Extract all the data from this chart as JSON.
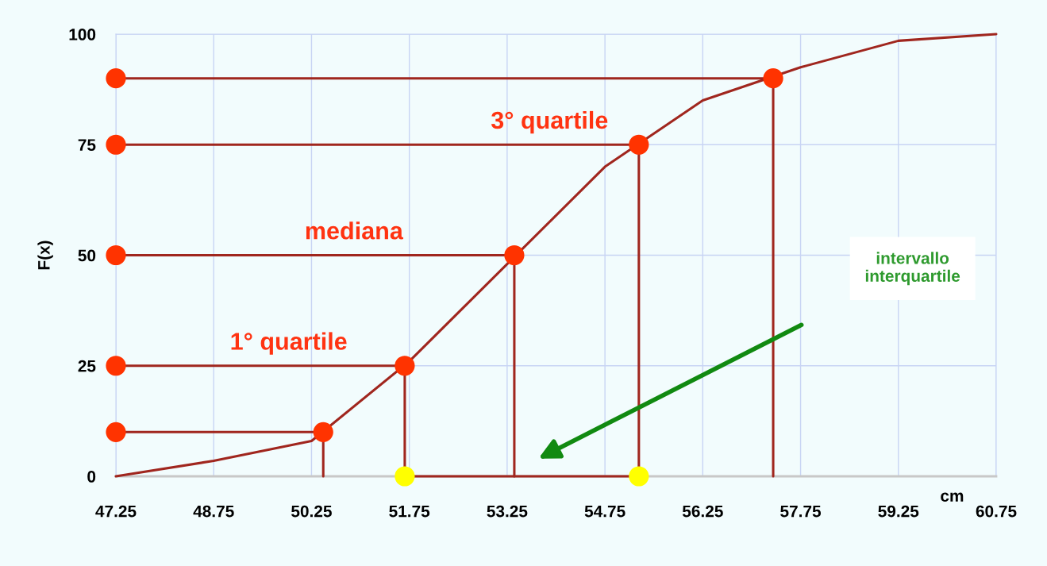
{
  "chart_data": {
    "type": "line",
    "xlabel": "cm",
    "ylabel": "F(x)",
    "xlim": [
      47.25,
      60.75
    ],
    "xticks": [
      47.25,
      48.75,
      50.25,
      51.75,
      53.25,
      54.75,
      56.25,
      57.75,
      59.25,
      60.75
    ],
    "ylim": [
      0,
      100
    ],
    "yticks": [
      0,
      25,
      50,
      75,
      100
    ],
    "grid": true,
    "series": [
      {
        "color": "#a0261e",
        "x": [
          47.25,
          48.75,
          50.25,
          51.75,
          53.25,
          54.75,
          56.25,
          57.75,
          59.25,
          60.75
        ],
        "values": [
          0,
          3.5,
          8,
          26,
          48,
          70,
          85,
          92.5,
          98.5,
          100
        ]
      },
      {
        "type": "line",
        "color": "#a0261e",
        "x": [
          47.25,
          50.43,
          50.43
        ],
        "values": [
          10,
          10,
          0
        ]
      },
      {
        "type": "line",
        "color": "#a0261e",
        "x": [
          47.25,
          51.68,
          51.68
        ],
        "values": [
          25,
          25,
          0
        ]
      },
      {
        "type": "line",
        "color": "#a0261e",
        "x": [
          47.25,
          53.36,
          53.36
        ],
        "values": [
          50,
          50,
          0
        ]
      },
      {
        "type": "line",
        "color": "#a0261e",
        "x": [
          47.25,
          55.27,
          55.27
        ],
        "values": [
          75,
          75,
          0
        ]
      },
      {
        "type": "line",
        "color": "#a0261e",
        "x": [
          47.25,
          57.33,
          57.33
        ],
        "values": [
          90,
          90,
          0
        ]
      },
      {
        "type": "line",
        "color": "#a0261e",
        "x": [
          51.68,
          55.27
        ],
        "values": [
          0,
          0
        ]
      },
      {
        "type": "scatter",
        "marker": "circle",
        "color": "#ff3300",
        "x": [
          47.25,
          47.25,
          47.25,
          47.25,
          47.25
        ],
        "values": [
          10,
          25,
          50,
          75,
          90
        ]
      },
      {
        "type": "scatter",
        "marker": "circle",
        "color": "#ff3300",
        "x": [
          50.43,
          51.68,
          53.36,
          55.27,
          57.33
        ],
        "values": [
          10,
          25,
          50,
          75,
          90
        ]
      },
      {
        "type": "scatter",
        "marker": "circle",
        "color": "#ffff00",
        "x": [
          51.68,
          55.27
        ],
        "values": [
          0,
          0
        ]
      }
    ],
    "annotations": [
      {
        "text": "1° quartile",
        "x": 49.9,
        "y": 25
      },
      {
        "text": "mediana",
        "x": 50.9,
        "y": 50
      },
      {
        "text": "3° quartile",
        "x": 53.9,
        "y": 75
      },
      "intervallo\ninterquartile"
    ]
  }
}
